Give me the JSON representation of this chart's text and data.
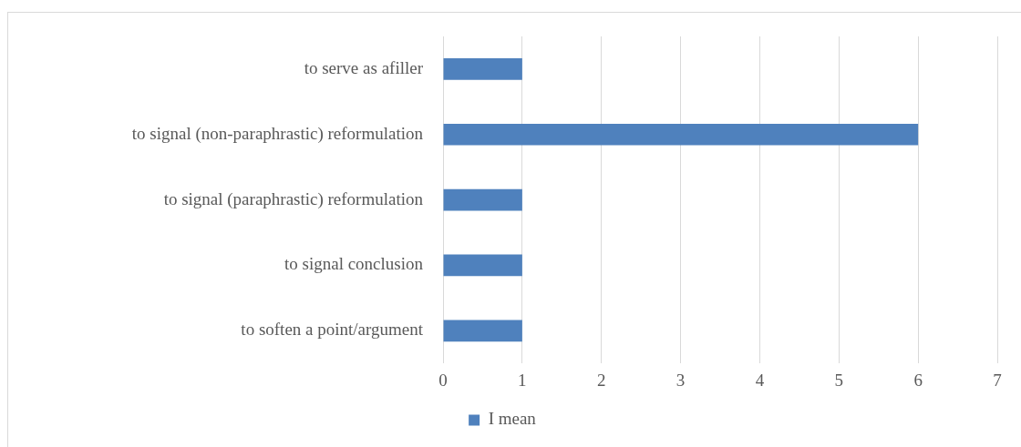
{
  "chart_data": {
    "type": "bar",
    "orientation": "horizontal",
    "categories": [
      "to serve as afiller",
      "to signal (non-paraphrastic) reformulation",
      "to signal (paraphrastic) reformulation",
      "to signal conclusion",
      "to soften a point/argument"
    ],
    "series": [
      {
        "name": "I mean",
        "color": "#4f81bd",
        "values": [
          1,
          6,
          1,
          1,
          1
        ]
      }
    ],
    "xlim": [
      0,
      7
    ],
    "xticks": [
      0,
      1,
      2,
      3,
      4,
      5,
      6,
      7
    ],
    "grid": "x",
    "legend": "bottom"
  }
}
